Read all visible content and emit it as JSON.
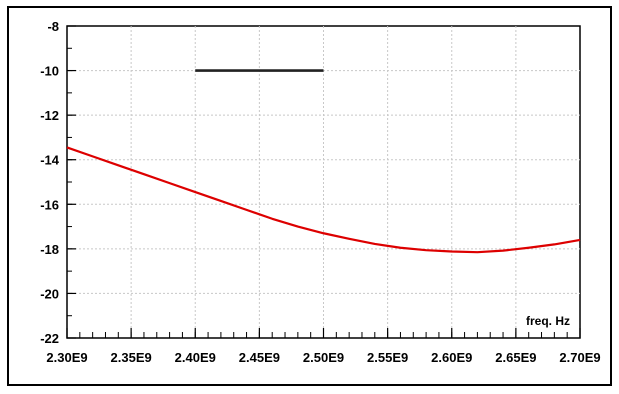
{
  "chart_data": {
    "type": "line",
    "title": "",
    "xlabel": "freq. Hz",
    "ylabel": "",
    "xlim": [
      2300000000.0,
      2700000000.0
    ],
    "ylim": [
      -22,
      -8
    ],
    "x_ticks": [
      2300000000.0,
      2350000000.0,
      2400000000.0,
      2450000000.0,
      2500000000.0,
      2550000000.0,
      2600000000.0,
      2650000000.0,
      2700000000.0
    ],
    "x_tick_labels": [
      "2.30E9",
      "2.35E9",
      "2.40E9",
      "2.45E9",
      "2.50E9",
      "2.55E9",
      "2.60E9",
      "2.65E9",
      "2.70E9"
    ],
    "x_minor_step": 10000000.0,
    "y_ticks": [
      -8,
      -10,
      -12,
      -14,
      -16,
      -18,
      -20,
      -22
    ],
    "y_tick_labels": [
      "-8",
      "-10",
      "-12",
      "-14",
      "-16",
      "-18",
      "-20",
      "-22"
    ],
    "y_minor_step": 1,
    "grid": true,
    "series": [
      {
        "color": "#dd0000",
        "x": [
          2300000000.0,
          2320000000.0,
          2340000000.0,
          2360000000.0,
          2380000000.0,
          2400000000.0,
          2420000000.0,
          2440000000.0,
          2460000000.0,
          2480000000.0,
          2500000000.0,
          2520000000.0,
          2540000000.0,
          2560000000.0,
          2580000000.0,
          2600000000.0,
          2620000000.0,
          2640000000.0,
          2660000000.0,
          2680000000.0,
          2700000000.0
        ],
        "y": [
          -13.45,
          -13.85,
          -14.25,
          -14.65,
          -15.05,
          -15.45,
          -15.85,
          -16.25,
          -16.65,
          -17.0,
          -17.3,
          -17.55,
          -17.78,
          -17.95,
          -18.06,
          -18.12,
          -18.15,
          -18.08,
          -17.95,
          -17.8,
          -17.6
        ]
      },
      {
        "color": "#222222",
        "x": [
          2400000000.0,
          2500000000.0
        ],
        "y": [
          -10,
          -10
        ]
      }
    ]
  }
}
